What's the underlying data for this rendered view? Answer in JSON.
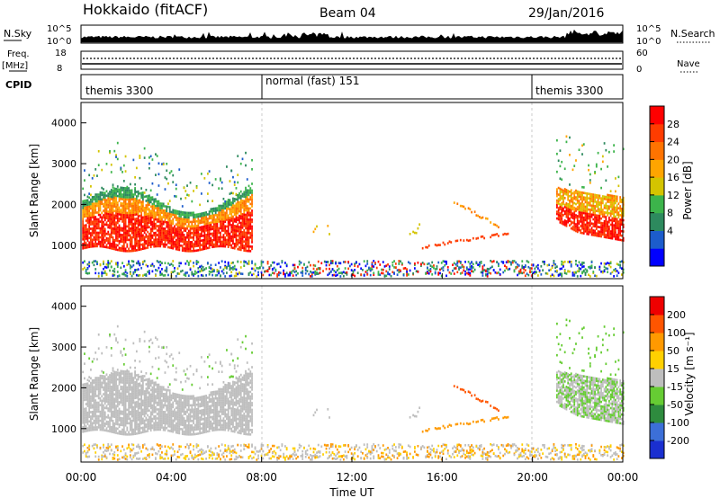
{
  "header": {
    "station": "Hokkaido (fitACF)",
    "beam": "Beam 04",
    "date": "29/Jan/2016"
  },
  "panels": {
    "nsky_label": "N.Sky",
    "nsearch_label": "N.Search",
    "nsky_ticks": [
      "10^5",
      "10^0"
    ],
    "nsearch_ticks": [
      "10^5",
      "10^0"
    ],
    "freq_label": "Freq.",
    "freq_unit": "[MHz]",
    "freq_ticks": [
      "18",
      "8"
    ],
    "nave_label": "Nave",
    "nave_ticks": [
      "60",
      "0"
    ],
    "cpid_label": "CPID",
    "cpid_segments": [
      "themis 3300",
      "normal (fast) 151",
      "themis 3300"
    ]
  },
  "chart_data": [
    {
      "type": "heatmap",
      "name": "power",
      "ylabel": "Slant Range [km]",
      "yticks": [
        "4000",
        "3000",
        "2000",
        "1000"
      ],
      "colorbar_label": "Power [dB]",
      "colorbar_ticks": [
        "28",
        "24",
        "20",
        "16",
        "12",
        "8",
        "4"
      ],
      "colorbar_colors": [
        "#0000ff",
        "#1c5ccc",
        "#2d8a5e",
        "#3cb44b",
        "#d4c400",
        "#ffa500",
        "#ff7300",
        "#ff3c00",
        "#ff0000"
      ]
    },
    {
      "type": "heatmap",
      "name": "velocity",
      "ylabel": "Slant Range [km]",
      "yticks": [
        "4000",
        "3000",
        "2000",
        "1000"
      ],
      "colorbar_label": "Velocity [m s⁻¹]",
      "colorbar_ticks": [
        "200",
        "100",
        "50",
        "15",
        "-15",
        "-50",
        "-100",
        "-200"
      ],
      "colorbar_colors": [
        "#1a2fd0",
        "#3c6fd8",
        "#2e8b3e",
        "#66cc33",
        "#bebebe",
        "#ffd000",
        "#ff9900",
        "#ff5500",
        "#ee0000"
      ]
    }
  ],
  "xaxis": {
    "label": "Time UT",
    "ticks": [
      "00:00",
      "04:00",
      "08:00",
      "12:00",
      "16:00",
      "20:00",
      "00:00"
    ]
  }
}
